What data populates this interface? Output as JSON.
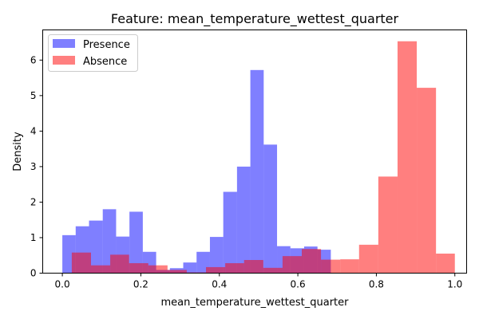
{
  "chart_data": {
    "type": "bar",
    "title": "Feature: mean_temperature_wettest_quarter",
    "xlabel": "mean_temperature_wettest_quarter",
    "ylabel": "Density",
    "xlim": [
      -0.05,
      1.03
    ],
    "ylim": [
      0,
      6.85
    ],
    "xticks": [
      0.0,
      0.2,
      0.4,
      0.6,
      0.8,
      1.0
    ],
    "yticks": [
      0,
      1,
      2,
      3,
      4,
      5,
      6
    ],
    "legend": "top-left",
    "series": [
      {
        "name": "Presence",
        "color": "#0000ff",
        "alpha": 0.5,
        "bins": [
          [
            0.0,
            0.034,
            1.07
          ],
          [
            0.034,
            0.068,
            1.32
          ],
          [
            0.068,
            0.103,
            1.48
          ],
          [
            0.103,
            0.137,
            1.8
          ],
          [
            0.137,
            0.171,
            1.03
          ],
          [
            0.171,
            0.205,
            1.73
          ],
          [
            0.205,
            0.239,
            0.6
          ],
          [
            0.239,
            0.274,
            0.09
          ],
          [
            0.274,
            0.308,
            0.14
          ],
          [
            0.308,
            0.342,
            0.3
          ],
          [
            0.342,
            0.376,
            0.6
          ],
          [
            0.376,
            0.41,
            1.02
          ],
          [
            0.41,
            0.445,
            2.29
          ],
          [
            0.445,
            0.479,
            3.0
          ],
          [
            0.479,
            0.513,
            5.72
          ],
          [
            0.513,
            0.547,
            3.62
          ],
          [
            0.547,
            0.581,
            0.76
          ],
          [
            0.581,
            0.616,
            0.7
          ],
          [
            0.616,
            0.65,
            0.75
          ],
          [
            0.65,
            0.684,
            0.66
          ]
        ]
      },
      {
        "name": "Absence",
        "color": "#ff0000",
        "alpha": 0.5,
        "bins": [
          [
            0.024,
            0.073,
            0.58
          ],
          [
            0.073,
            0.122,
            0.22
          ],
          [
            0.122,
            0.17,
            0.52
          ],
          [
            0.17,
            0.219,
            0.28
          ],
          [
            0.219,
            0.268,
            0.22
          ],
          [
            0.268,
            0.317,
            0.09
          ],
          [
            0.317,
            0.366,
            0.02
          ],
          [
            0.366,
            0.415,
            0.17
          ],
          [
            0.415,
            0.463,
            0.28
          ],
          [
            0.463,
            0.512,
            0.37
          ],
          [
            0.512,
            0.561,
            0.15
          ],
          [
            0.561,
            0.61,
            0.48
          ],
          [
            0.61,
            0.659,
            0.68
          ],
          [
            0.659,
            0.708,
            0.38
          ],
          [
            0.708,
            0.756,
            0.39
          ],
          [
            0.756,
            0.805,
            0.8
          ],
          [
            0.805,
            0.854,
            2.72
          ],
          [
            0.854,
            0.903,
            6.53
          ],
          [
            0.903,
            0.952,
            5.22
          ],
          [
            0.952,
            1.0,
            0.55
          ]
        ]
      }
    ]
  }
}
